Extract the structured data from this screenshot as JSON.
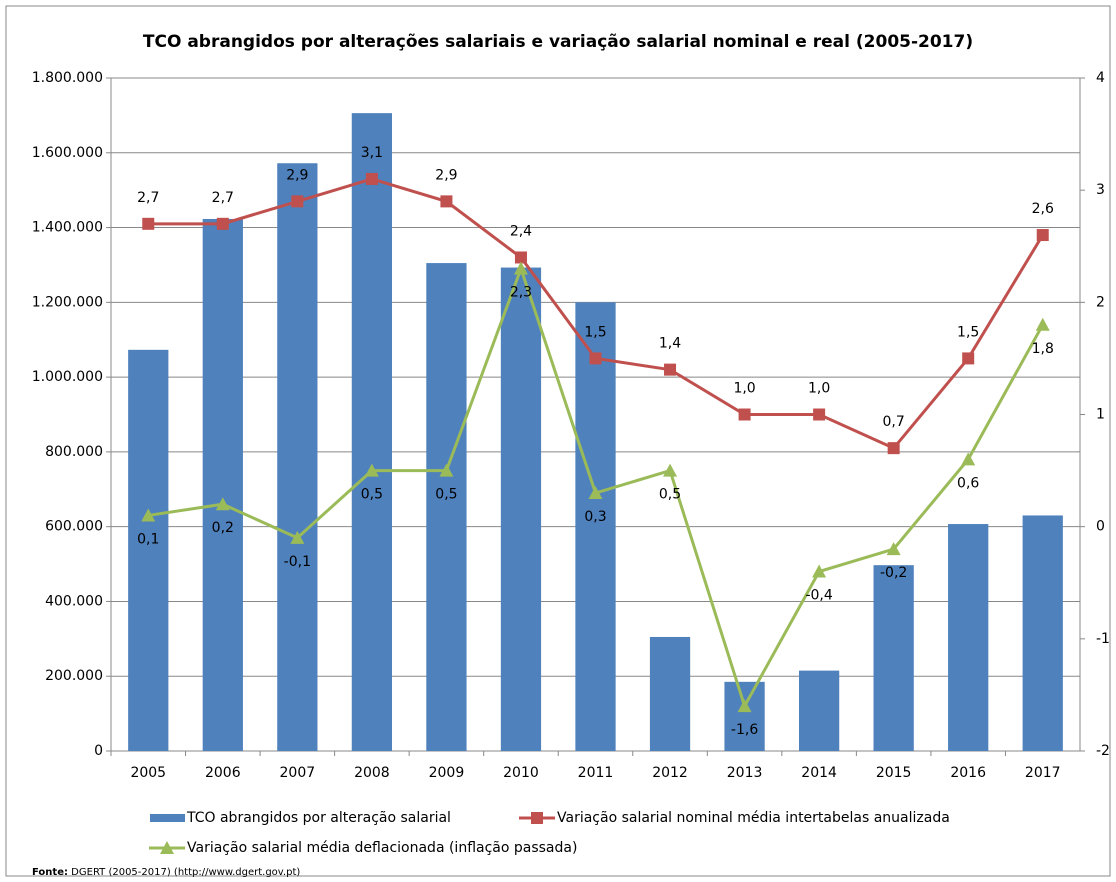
{
  "chart_data": {
    "type": "bar_line",
    "title": "TCO abrangidos por alterações salariais e variação salarial nominal e real (2005-2017)",
    "source_label": "Fonte:",
    "source_text": "DGERT (2005-2017) (http://www.dgert.gov.pt)",
    "categories": [
      "2005",
      "2006",
      "2007",
      "2008",
      "2009",
      "2010",
      "2011",
      "2012",
      "2013",
      "2014",
      "2015",
      "2016",
      "2017"
    ],
    "series": [
      {
        "name": "TCO abrangidos por alteração salarial",
        "type": "bar",
        "color": "#4f81bd",
        "axis": "y",
        "values": [
          1073000,
          1423000,
          1572000,
          1706000,
          1305000,
          1293000,
          1200000,
          305000,
          185000,
          215000,
          497000,
          607000,
          630000
        ]
      },
      {
        "name": "Variação salarial nominal média intertabelas anualizada",
        "type": "line",
        "marker": "square",
        "color": "#c0504d",
        "axis": "y2",
        "values": [
          2.7,
          2.7,
          2.9,
          3.1,
          2.9,
          2.4,
          1.5,
          1.4,
          1.0,
          1.0,
          0.7,
          1.5,
          2.6
        ],
        "value_labels": [
          "2,7",
          "2,7",
          "2,9",
          "3,1",
          "2,9",
          "2,4",
          "1,5",
          "1,4",
          "1,0",
          "1,0",
          "0,7",
          "1,5",
          "2,6"
        ]
      },
      {
        "name": "Variação salarial média deflacionada (inflação passada)",
        "type": "line",
        "marker": "triangle",
        "color": "#9bbb59",
        "axis": "y2",
        "values": [
          0.1,
          0.2,
          -0.1,
          0.5,
          0.5,
          2.3,
          0.3,
          0.5,
          -1.6,
          -0.4,
          -0.2,
          0.6,
          1.8
        ],
        "value_labels": [
          "0,1",
          "0,2",
          "-0,1",
          "0,5",
          "0,5",
          "2,3",
          "0,3",
          "0,5",
          "-1,6",
          "-0,4",
          "-0,2",
          "0,6",
          "1,8"
        ]
      }
    ],
    "ylim": [
      0,
      1800000
    ],
    "yticks": [
      0,
      {
        "value": 200000,
        "label": "200.000"
      },
      {
        "value": 400000,
        "label": "400.000"
      },
      {
        "value": 600000,
        "label": "600.000"
      },
      {
        "value": 800000,
        "label": "800.000"
      },
      {
        "value": 1000000,
        "label": "1.000.000"
      },
      {
        "value": 1200000,
        "label": "1.200.000"
      },
      {
        "value": 1400000,
        "label": "1.400.000"
      },
      {
        "value": 1600000,
        "label": "1.600.000"
      },
      {
        "value": 1800000,
        "label": "1.800.000"
      }
    ],
    "y2lim": [
      -2,
      4
    ],
    "y2ticks": [
      -2,
      -1,
      0,
      1,
      2,
      3,
      4
    ],
    "grid": true,
    "legend": "bottom"
  }
}
